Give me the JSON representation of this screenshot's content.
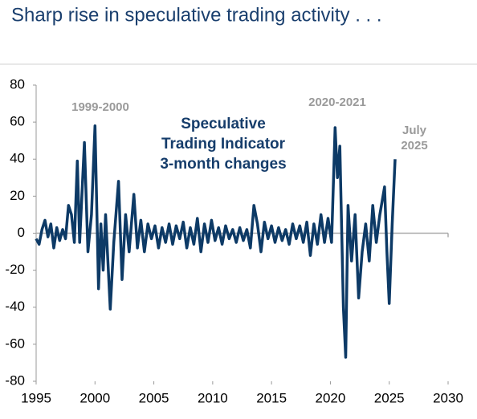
{
  "chart_data": {
    "type": "line",
    "title": "Sharp rise in speculative trading activity . . .",
    "annotations": [
      "1999-2000",
      "2020-2021",
      "July",
      "2025",
      "Speculative",
      "Trading Indicator",
      "3-month changes"
    ],
    "xlim": [
      1995,
      2030
    ],
    "xticks": [
      1995,
      2000,
      2005,
      2010,
      2015,
      2020,
      2025,
      2030
    ],
    "ylim": [
      -80,
      80
    ],
    "yticks": [
      -80,
      -60,
      -40,
      -20,
      0,
      20,
      40,
      60,
      80
    ],
    "grid": false,
    "series": [
      {
        "color": "#0d3a66",
        "x": [
          1995,
          1995.25,
          1995.5,
          1995.75,
          1996,
          1996.25,
          1996.5,
          1996.75,
          1997,
          1997.25,
          1997.5,
          1997.75,
          1998,
          1998.25,
          1998.5,
          1998.7,
          1999.1,
          1999.4,
          1999.7,
          2000,
          2000.3,
          2000.5,
          2000.7,
          2000.9,
          2001.3,
          2001.6,
          2002,
          2002.3,
          2002.6,
          2002.9,
          2003.3,
          2003.6,
          2003.9,
          2004.2,
          2004.5,
          2004.8,
          2005.1,
          2005.4,
          2005.7,
          2006,
          2006.3,
          2006.6,
          2006.9,
          2007.2,
          2007.5,
          2007.8,
          2008.1,
          2008.4,
          2008.7,
          2009,
          2009.3,
          2009.6,
          2009.9,
          2010.2,
          2010.5,
          2010.8,
          2011.1,
          2011.4,
          2011.7,
          2012,
          2012.3,
          2012.6,
          2012.9,
          2013.2,
          2013.5,
          2013.8,
          2014.1,
          2014.4,
          2014.7,
          2015,
          2015.3,
          2015.6,
          2015.9,
          2016.2,
          2016.5,
          2016.8,
          2017.1,
          2017.4,
          2017.7,
          2018,
          2018.3,
          2018.6,
          2018.9,
          2019.2,
          2019.5,
          2019.8,
          2020.1,
          2020.4,
          2020.6,
          2020.8,
          2021.1,
          2021.3,
          2021.5,
          2021.8,
          2022.1,
          2022.4,
          2022.7,
          2023,
          2023.3,
          2023.6,
          2023.9,
          2024.2,
          2024.6,
          2024.8,
          2025,
          2025.25,
          2025.5
        ],
        "values": [
          -3,
          -6,
          2,
          7,
          -2,
          5,
          -8,
          3,
          -4,
          2,
          -3,
          15,
          10,
          -5,
          39,
          -5,
          49,
          -10,
          10,
          58,
          -30,
          5,
          -20,
          10,
          -41,
          -5,
          28,
          -25,
          10,
          -10,
          21,
          -8,
          7,
          -10,
          5,
          -3,
          4,
          -8,
          3,
          -5,
          5,
          -6,
          4,
          -3,
          6,
          -8,
          3,
          -6,
          8,
          -10,
          5,
          -5,
          7,
          -4,
          3,
          -6,
          4,
          -3,
          2,
          -5,
          3,
          -4,
          2,
          -8,
          15,
          5,
          -10,
          6,
          -3,
          4,
          -5,
          3,
          -4,
          2,
          -6,
          5,
          -3,
          4,
          -5,
          6,
          -12,
          5,
          -6,
          10,
          -5,
          8,
          -5,
          57,
          30,
          47,
          -40,
          -67,
          15,
          -15,
          10,
          -35,
          -10,
          5,
          -15,
          15,
          -5,
          10,
          25,
          -10,
          -38,
          5,
          40
        ]
      }
    ]
  }
}
